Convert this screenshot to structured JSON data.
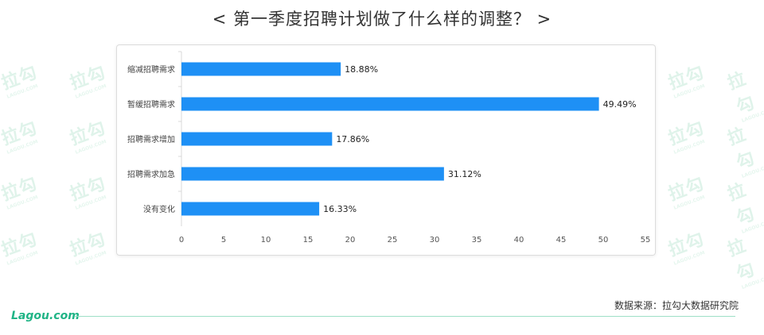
{
  "title": "< 第一季度招聘计划做了什么样的调整？ >",
  "watermark_text": "拉勾",
  "watermark_sub": "LAGOU.COM",
  "footer": {
    "logo": "Lagou.com",
    "source": "数据来源：拉勾大数据研究院"
  },
  "colors": {
    "bar": "#1e90f5",
    "accent": "#20b486"
  },
  "chart_data": {
    "type": "bar",
    "orientation": "horizontal",
    "categories": [
      "缩减招聘需求",
      "暂缓招聘需求",
      "招聘需求增加",
      "招聘需求加急",
      "没有变化"
    ],
    "values": [
      18.88,
      49.49,
      17.86,
      31.12,
      16.33
    ],
    "value_labels": [
      "18.88%",
      "49.49%",
      "17.86%",
      "31.12%",
      "16.33%"
    ],
    "xlim": [
      0,
      55
    ],
    "xticks": [
      0,
      5,
      10,
      15,
      20,
      25,
      30,
      35,
      40,
      45,
      50,
      55
    ],
    "grid": false,
    "legend": "none"
  }
}
